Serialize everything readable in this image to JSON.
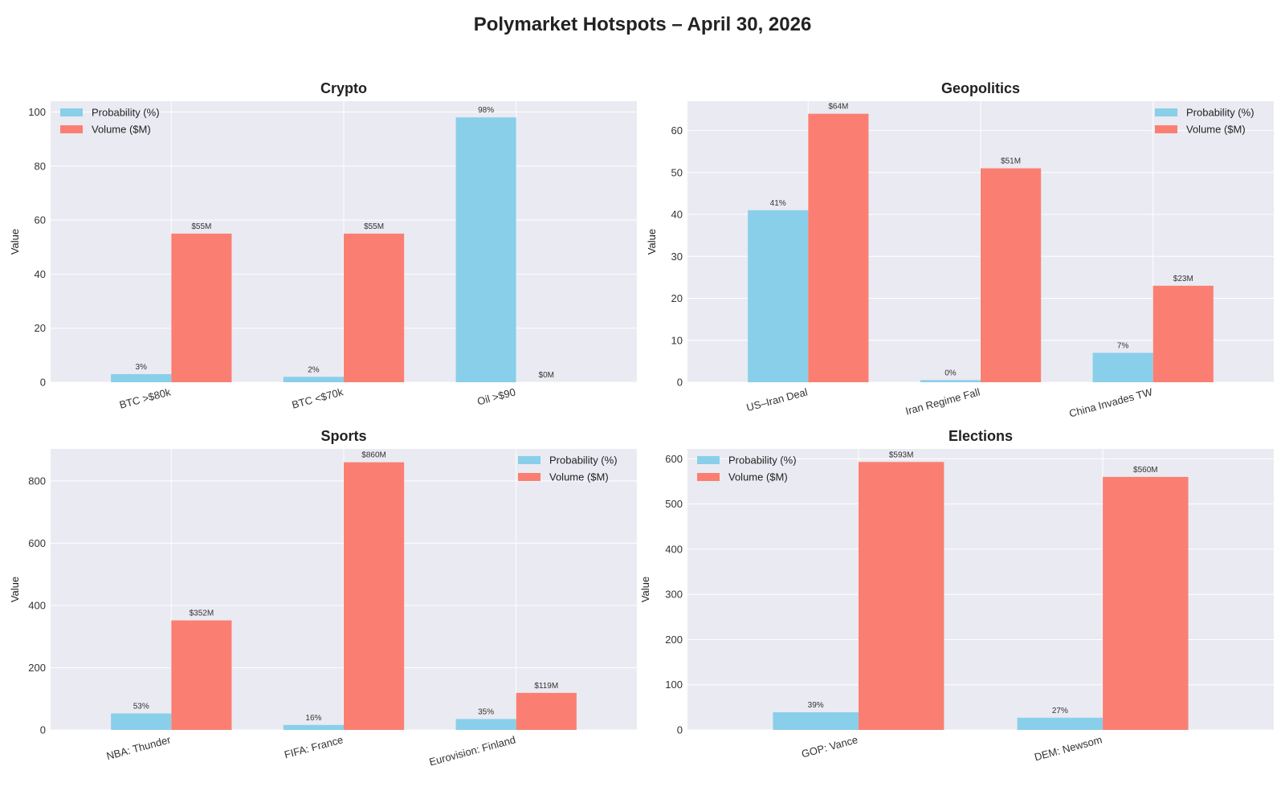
{
  "title": "Polymarket Hotspots – April 30, 2026",
  "colors": {
    "probability": "#89CFEA",
    "volume": "#FA7F72",
    "panel_bg": "#EAEAF2",
    "grid": "#FFFFFF"
  },
  "legend_labels": [
    "Probability (%)",
    "Volume ($M)"
  ],
  "chart_data": [
    {
      "type": "bar",
      "title": "Crypto",
      "categories": [
        "BTC >$80k",
        "BTC <$70k",
        "Oil >$90"
      ],
      "series": [
        {
          "name": "Probability (%)",
          "values": [
            3,
            2,
            98
          ],
          "labels": [
            "3%",
            "2%",
            "98%"
          ]
        },
        {
          "name": "Volume ($M)",
          "values": [
            55,
            55,
            0
          ],
          "labels": [
            "$55M",
            "$55M",
            "$0M"
          ]
        }
      ],
      "ylabel": "Value",
      "ylim": [
        0,
        104
      ],
      "yticks": [
        0,
        20,
        40,
        60,
        80,
        100
      ],
      "legend": "upper-left",
      "grid": true
    },
    {
      "type": "bar",
      "title": "Geopolitics",
      "categories": [
        "US–Iran Deal",
        "Iran Regime Fall",
        "China Invades TW"
      ],
      "series": [
        {
          "name": "Probability (%)",
          "values": [
            41,
            0.5,
            7
          ],
          "labels": [
            "41%",
            "0%",
            "7%"
          ]
        },
        {
          "name": "Volume ($M)",
          "values": [
            64,
            51,
            23
          ],
          "labels": [
            "$64M",
            "$51M",
            "$23M"
          ]
        }
      ],
      "ylabel": "Value",
      "ylim": [
        0,
        67
      ],
      "yticks": [
        0,
        10,
        20,
        30,
        40,
        50,
        60
      ],
      "legend": "upper-right",
      "grid": true
    },
    {
      "type": "bar",
      "title": "Sports",
      "categories": [
        "NBA: Thunder",
        "FIFA: France",
        "Eurovision: Finland"
      ],
      "series": [
        {
          "name": "Probability (%)",
          "values": [
            53,
            16,
            35
          ],
          "labels": [
            "53%",
            "16%",
            "35%"
          ]
        },
        {
          "name": "Volume ($M)",
          "values": [
            352,
            860,
            119
          ],
          "labels": [
            "$352M",
            "$860M",
            "$119M"
          ]
        }
      ],
      "ylabel": "Value",
      "ylim": [
        0,
        903
      ],
      "yticks": [
        0,
        200,
        400,
        600,
        800
      ],
      "legend": "upper-right",
      "grid": true
    },
    {
      "type": "bar",
      "title": "Elections",
      "categories": [
        "GOP: Vance",
        "DEM: Newsom"
      ],
      "series": [
        {
          "name": "Probability (%)",
          "values": [
            39,
            27
          ],
          "labels": [
            "39%",
            "27%"
          ]
        },
        {
          "name": "Volume ($M)",
          "values": [
            593,
            560
          ],
          "labels": [
            "$593M",
            "$560M"
          ]
        }
      ],
      "ylabel": "Value",
      "ylim": [
        0,
        622
      ],
      "yticks": [
        0,
        100,
        200,
        300,
        400,
        500,
        600
      ],
      "legend": "upper-left",
      "grid": true
    }
  ]
}
